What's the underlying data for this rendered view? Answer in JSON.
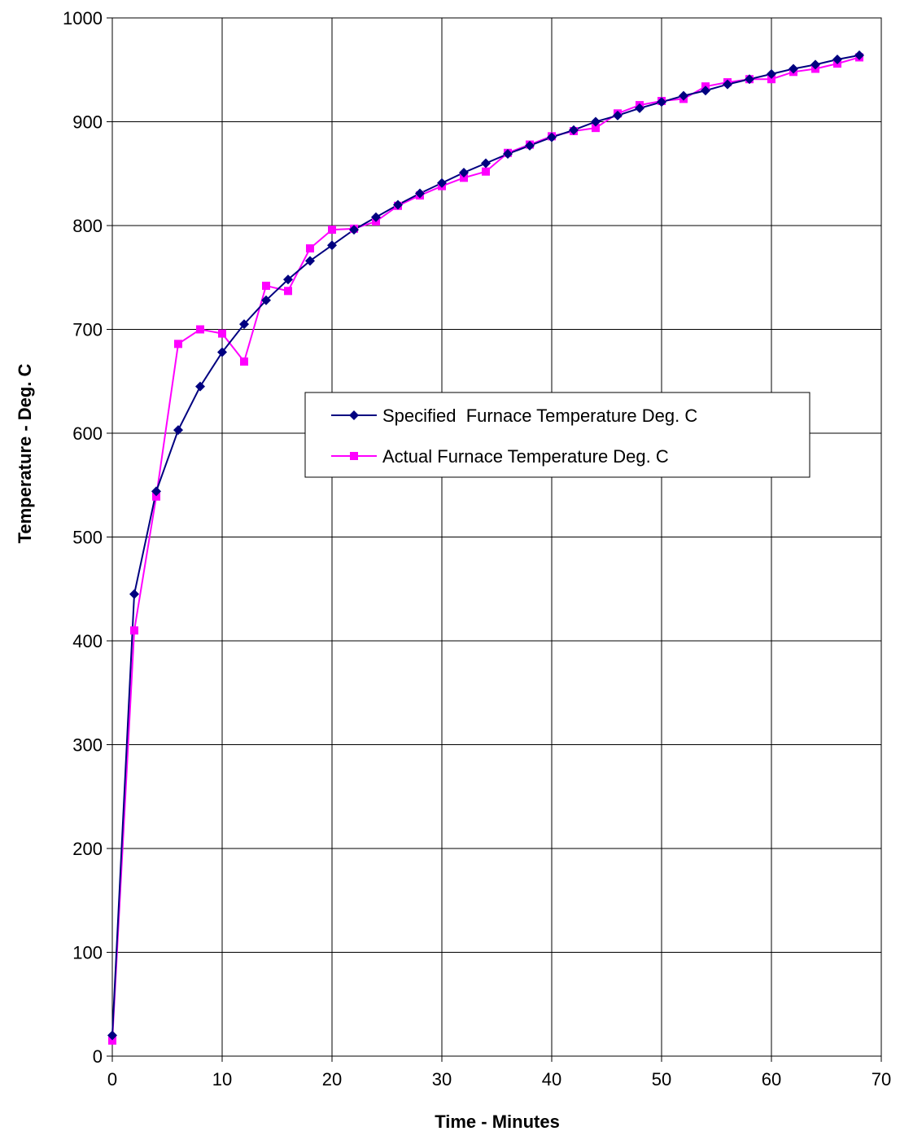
{
  "chart_data": {
    "type": "line",
    "title": "",
    "xlabel": "Time - Minutes",
    "ylabel": "Temperature - Deg. C",
    "xlim": [
      0,
      70
    ],
    "ylim": [
      0,
      1000
    ],
    "x_ticks": [
      0,
      10,
      20,
      30,
      40,
      50,
      60,
      70
    ],
    "y_ticks": [
      0,
      100,
      200,
      300,
      400,
      500,
      600,
      700,
      800,
      900,
      1000
    ],
    "x_tick_labels": [
      "0",
      "10",
      "20",
      "30",
      "40",
      "50",
      "60",
      "70"
    ],
    "y_tick_labels": [
      "0",
      "100",
      "200",
      "300",
      "400",
      "500",
      "600",
      "700",
      "800",
      "900",
      "1000"
    ],
    "grid": true,
    "legend_position": "center-right",
    "series": [
      {
        "name": "Specified  Furnace Temperature Deg. C",
        "color": "#000080",
        "marker": "diamond",
        "x": [
          0,
          2,
          4,
          6,
          8,
          10,
          12,
          14,
          16,
          18,
          20,
          22,
          24,
          26,
          28,
          30,
          32,
          34,
          36,
          38,
          40,
          42,
          44,
          46,
          48,
          50,
          52,
          54,
          56,
          58,
          60,
          62,
          64,
          66,
          68
        ],
        "y": [
          20,
          445,
          544,
          603,
          645,
          678,
          705,
          728,
          748,
          766,
          781,
          796,
          808,
          820,
          831,
          841,
          851,
          860,
          869,
          877,
          885,
          892,
          900,
          906,
          913,
          919,
          925,
          930,
          936,
          941,
          946,
          951,
          955,
          960,
          964
        ]
      },
      {
        "name": "Actual Furnace Temperature Deg. C",
        "color": "#FF00FF",
        "marker": "square",
        "x": [
          0,
          2,
          4,
          6,
          8,
          10,
          12,
          14,
          16,
          18,
          20,
          22,
          24,
          26,
          28,
          30,
          32,
          34,
          36,
          38,
          40,
          42,
          44,
          46,
          48,
          50,
          52,
          54,
          56,
          58,
          60,
          62,
          64,
          66,
          68
        ],
        "y": [
          15,
          410,
          539,
          686,
          700,
          696,
          669,
          742,
          737,
          778,
          796,
          797,
          804,
          819,
          829,
          838,
          846,
          852,
          870,
          878,
          886,
          891,
          894,
          908,
          916,
          920,
          922,
          934,
          938,
          941,
          941,
          948,
          951,
          956,
          962
        ]
      }
    ]
  }
}
